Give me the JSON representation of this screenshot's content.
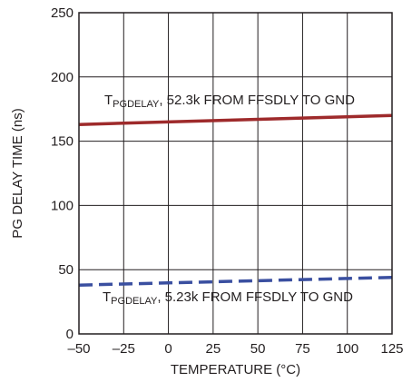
{
  "chart_data": {
    "type": "line",
    "title": "",
    "xlabel": "TEMPERATURE (°C)",
    "ylabel": "PG DELAY TIME (ns)",
    "xlim": [
      -50,
      125
    ],
    "ylim": [
      0,
      250
    ],
    "xticks": [
      -50,
      -25,
      0,
      25,
      50,
      75,
      100,
      125
    ],
    "xtick_labels": [
      "–50",
      "–25",
      "0",
      "25",
      "50",
      "75",
      "100",
      "125"
    ],
    "yticks": [
      0,
      50,
      100,
      150,
      200,
      250
    ],
    "ytick_labels": [
      "0",
      "50",
      "100",
      "150",
      "200",
      "250"
    ],
    "grid": true,
    "legend": "none",
    "series": [
      {
        "x": [
          -50,
          125
        ],
        "y": [
          163,
          170
        ],
        "color": "#9e2a2b",
        "style": "solid",
        "label_main": "T",
        "label_sub": "PGDELAY",
        "label_rest": ", 52.3k FROM FFSDLY TO GND"
      },
      {
        "x": [
          -50,
          125
        ],
        "y": [
          38,
          44
        ],
        "color": "#3a4fa0",
        "style": "dashed",
        "label_main": "T",
        "label_sub": "PGDELAY",
        "label_rest": ", 5.23k FROM FFSDLY TO GND"
      }
    ]
  }
}
